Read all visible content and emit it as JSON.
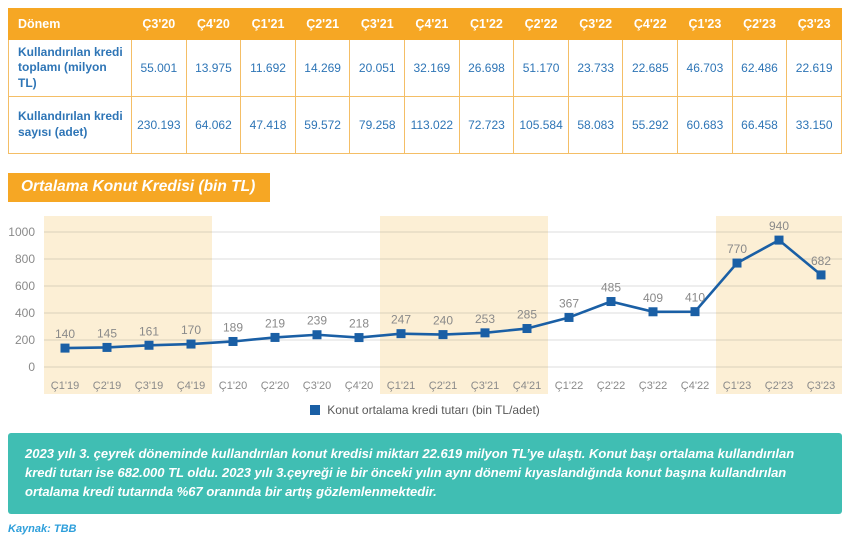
{
  "table": {
    "header": [
      "Dönem",
      "Ç3'20",
      "Ç4'20",
      "Ç1'21",
      "Ç2'21",
      "Ç3'21",
      "Ç4'21",
      "Ç1'22",
      "Ç2'22",
      "Ç3'22",
      "Ç4'22",
      "Ç1'23",
      "Ç2'23",
      "Ç3'23"
    ],
    "rows": [
      {
        "label": "Kullandırılan kredi toplamı (milyon TL)",
        "values": [
          "55.001",
          "13.975",
          "11.692",
          "14.269",
          "20.051",
          "32.169",
          "26.698",
          "51.170",
          "23.733",
          "22.685",
          "46.703",
          "62.486",
          "22.619"
        ]
      },
      {
        "label": "Kullandırılan kredi sayısı (adet)",
        "values": [
          "230.193",
          "64.062",
          "47.418",
          "59.572",
          "79.258",
          "113.022",
          "72.723",
          "105.584",
          "58.083",
          "55.292",
          "60.683",
          "66.458",
          "33.150"
        ]
      }
    ]
  },
  "chart_title": "Ortalama Konut Kredisi (bin TL)",
  "chart_data": {
    "type": "line",
    "title": "Ortalama Konut Kredisi (bin TL)",
    "categories": [
      "Ç1'19",
      "Ç2'19",
      "Ç3'19",
      "Ç4'19",
      "Ç1'20",
      "Ç2'20",
      "Ç3'20",
      "Ç4'20",
      "Ç1'21",
      "Ç2'21",
      "Ç3'21",
      "Ç4'21",
      "Ç1'22",
      "Ç2'22",
      "Ç3'22",
      "Ç4'22",
      "Ç1'23",
      "Ç2'23",
      "Ç3'23"
    ],
    "values": [
      140,
      145,
      161,
      170,
      189,
      219,
      239,
      218,
      247,
      240,
      253,
      285,
      367,
      485,
      409,
      410,
      770,
      940,
      682
    ],
    "ylim": [
      0,
      1000
    ],
    "yticks": [
      0,
      200,
      400,
      600,
      800,
      1000
    ],
    "grid": true,
    "marker": "square",
    "legend": "Konut ortalama kredi tutarı (bin TL/adet)",
    "legend_position": "bottom-center",
    "shaded_year_bands": [
      [
        0,
        3
      ],
      [
        8,
        11
      ],
      [
        16,
        18
      ]
    ]
  },
  "summary": {
    "text": "2023 yılı 3. çeyrek döneminde kullandırılan konut kredisi miktarı 22.619 milyon TL’ye ulaştı. Konut başı ortalama kullandırılan kredi tutarı ise 682.000 TL oldu. 2023 yılı 3.çeyreği ie bir önceki yılın aynı dönemi kıyaslandığında konut başına kullandırılan ortalama kredi tutarında %67 oranında bir artış gözlemlenmektedir."
  },
  "source": {
    "label": "Kaynak: TBB"
  },
  "colors": {
    "orange": "#F6A724",
    "table_border": "#F4BE66",
    "table_text_blue": "#2E75B6",
    "line_blue": "#1A5FA5",
    "band_cream": "#FCEFD5",
    "label_gray": "#8A8A8A",
    "teal": "#40BEB3",
    "source_blue": "#2E9FDB"
  }
}
